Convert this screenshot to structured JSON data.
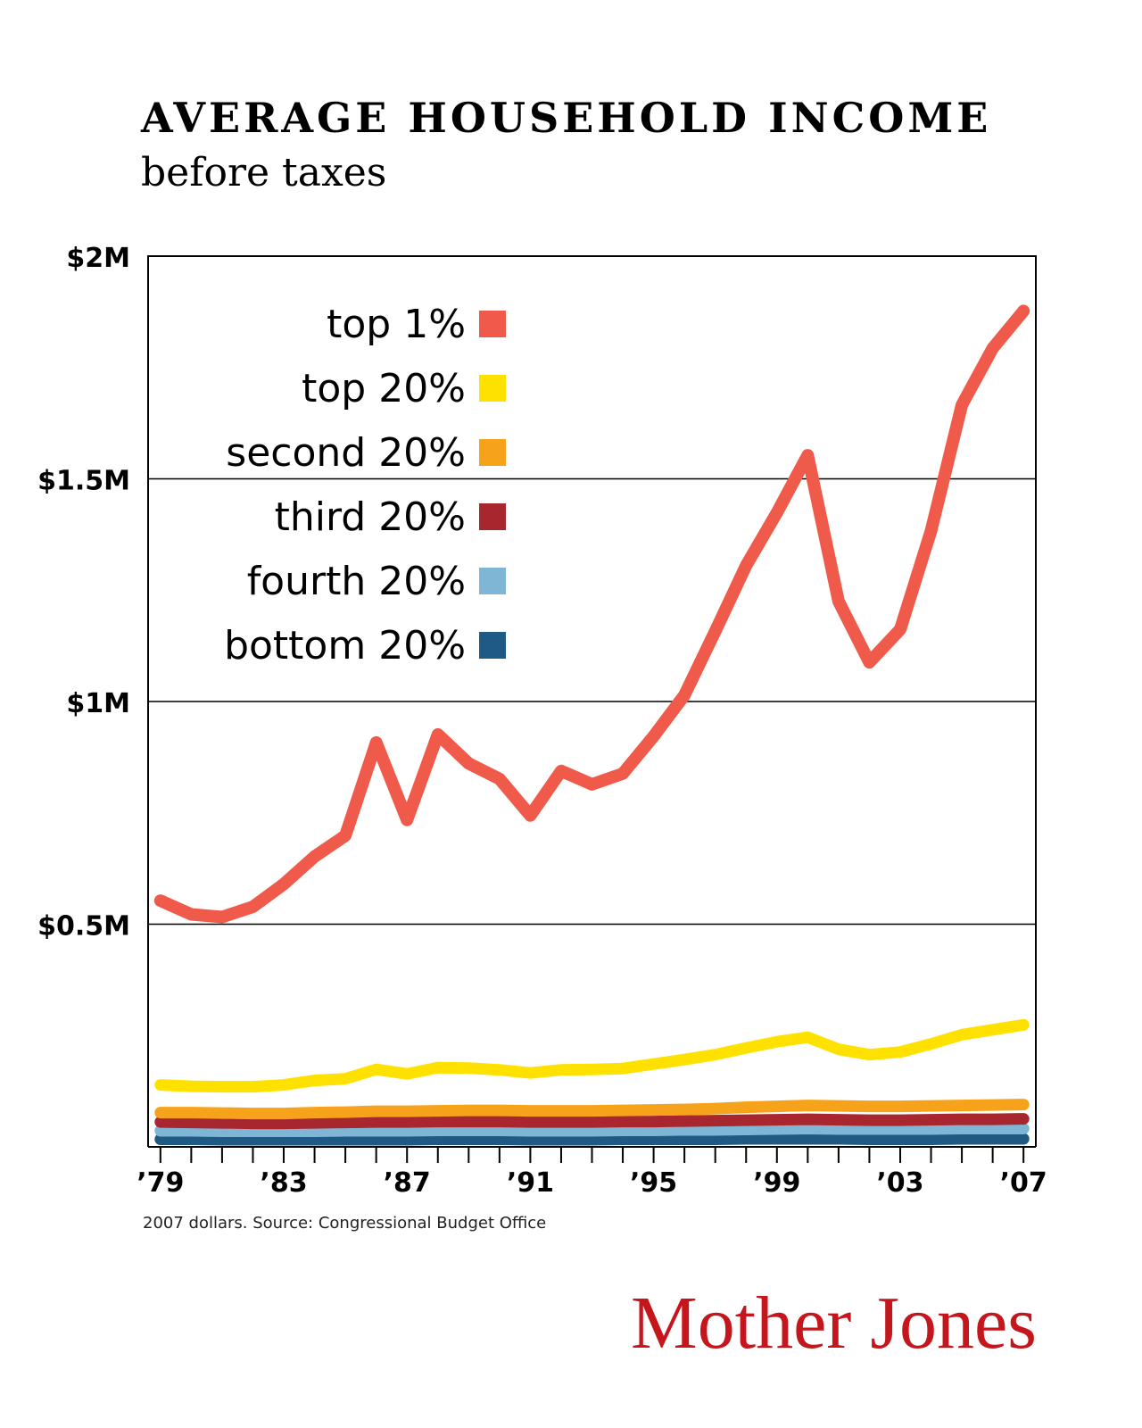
{
  "chart_data": {
    "type": "line",
    "title": "AVERAGE HOUSEHOLD INCOME",
    "subtitle": "before taxes",
    "note": "2007 dollars. Source: Congressional Budget Office",
    "logo": "Mother Jones",
    "x": [
      1979,
      1980,
      1981,
      1982,
      1983,
      1984,
      1985,
      1986,
      1987,
      1988,
      1989,
      1990,
      1991,
      1992,
      1993,
      1994,
      1995,
      1996,
      1997,
      1998,
      1999,
      2000,
      2001,
      2002,
      2003,
      2004,
      2005,
      2006,
      2007
    ],
    "xlim": [
      1978.6,
      2007.4
    ],
    "xticks": [
      {
        "value": 1979,
        "label": "’79"
      },
      {
        "value": 1983,
        "label": "’83"
      },
      {
        "value": 1987,
        "label": "’87"
      },
      {
        "value": 1991,
        "label": "’91"
      },
      {
        "value": 1995,
        "label": "’95"
      },
      {
        "value": 1999,
        "label": "’99"
      },
      {
        "value": 2003,
        "label": "’03"
      },
      {
        "value": 2007,
        "label": "’07"
      }
    ],
    "ylim": [
      0,
      2000000
    ],
    "yticks": [
      {
        "value": 500000,
        "label": "$0.5M"
      },
      {
        "value": 1000000,
        "label": "$1M"
      },
      {
        "value": 1500000,
        "label": "$1.5M"
      },
      {
        "value": 2000000,
        "label": "$2M"
      }
    ],
    "grid": true,
    "legend": "upper left",
    "series": [
      {
        "name": "top 1%",
        "color": "#f05a4a",
        "values": [
          553000,
          522000,
          516000,
          539000,
          590000,
          652000,
          699000,
          908000,
          734000,
          926000,
          861000,
          826000,
          744000,
          844000,
          814000,
          838000,
          922000,
          1014000,
          1158000,
          1305000,
          1424000,
          1553000,
          1225000,
          1088000,
          1162000,
          1383000,
          1666000,
          1793000,
          1877000
        ]
      },
      {
        "name": "top 20%",
        "color": "#ffe100",
        "values": [
          139000,
          136000,
          135000,
          135000,
          139000,
          149000,
          153000,
          174000,
          164000,
          178000,
          177000,
          173000,
          166000,
          173000,
          174000,
          176000,
          186000,
          196000,
          207000,
          222000,
          236000,
          246000,
          219000,
          207000,
          213000,
          231000,
          252000,
          263000,
          274000
        ]
      },
      {
        "name": "second 20%",
        "color": "#f7a21b",
        "values": [
          77000,
          77000,
          76000,
          75000,
          75000,
          77000,
          78000,
          80000,
          80000,
          81000,
          82000,
          82000,
          81000,
          81000,
          81000,
          82000,
          83000,
          84000,
          86000,
          89000,
          91000,
          93000,
          92000,
          91000,
          91000,
          92000,
          93000,
          94000,
          95000
        ]
      },
      {
        "name": "third 20%",
        "color": "#a8262e",
        "values": [
          56000,
          55000,
          54000,
          53000,
          53000,
          54000,
          55000,
          56000,
          56000,
          57000,
          57000,
          57000,
          56000,
          56000,
          56000,
          57000,
          57000,
          58000,
          59000,
          60000,
          61000,
          62000,
          61000,
          60000,
          60000,
          61000,
          62000,
          62000,
          63000
        ]
      },
      {
        "name": "fourth 20%",
        "color": "#7fb5d5",
        "values": [
          36000,
          36000,
          35000,
          35000,
          35000,
          35000,
          36000,
          36000,
          36000,
          37000,
          37000,
          37000,
          36000,
          36000,
          36000,
          37000,
          37000,
          38000,
          38000,
          39000,
          40000,
          41000,
          40000,
          40000,
          40000,
          40000,
          41000,
          41000,
          41000
        ]
      },
      {
        "name": "bottom 20%",
        "color": "#1f5a85",
        "values": [
          17000,
          17000,
          16000,
          16000,
          16000,
          16000,
          16000,
          16000,
          16000,
          17000,
          17000,
          17000,
          16000,
          16000,
          16000,
          17000,
          17000,
          17000,
          17000,
          18000,
          18000,
          18000,
          18000,
          17000,
          17000,
          17000,
          18000,
          18000,
          18000
        ]
      }
    ]
  }
}
